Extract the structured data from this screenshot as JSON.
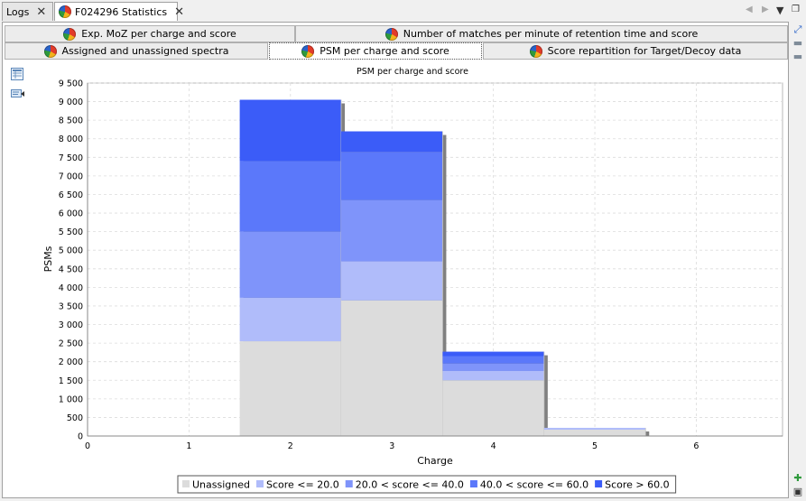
{
  "tabs": [
    {
      "label": "Logs",
      "active": false,
      "has_icon": false
    },
    {
      "label": "F024296 Statistics",
      "active": true,
      "has_icon": true
    }
  ],
  "close_glyph": "✕",
  "subtabs_row1": [
    "Exp. MoZ per charge and score",
    "Number of matches per minute of retention time and score"
  ],
  "subtabs_row2": [
    "Assigned and unassigned spectra",
    "PSM per charge and score",
    "Score repartition for Target/Decoy data"
  ],
  "active_subtab": "PSM per charge and score",
  "chart_data": {
    "type": "bar",
    "stacked": true,
    "title": "PSM per charge and score",
    "xlabel": "Charge",
    "ylabel": "PSMs",
    "xlim": [
      0,
      6.85
    ],
    "ylim": [
      0,
      9500
    ],
    "x_ticks": [
      "0",
      "1",
      "2",
      "3",
      "4",
      "5",
      "6"
    ],
    "y_ticks": [
      "0",
      "500",
      "1 000",
      "1 500",
      "2 000",
      "2 500",
      "3 000",
      "3 500",
      "4 000",
      "4 500",
      "5 000",
      "5 500",
      "6 000",
      "6 500",
      "7 000",
      "7 500",
      "8 000",
      "8 500",
      "9 000",
      "9 500"
    ],
    "categories": [
      2,
      3,
      4,
      5
    ],
    "series": [
      {
        "name": "Unassigned",
        "color": "#dcdcdc",
        "values": [
          2550,
          3650,
          1500,
          170
        ]
      },
      {
        "name": "Score <= 20.0",
        "color": "#b0bcfa",
        "values": [
          1170,
          1050,
          250,
          50
        ]
      },
      {
        "name": "20.0 < score <= 40.0",
        "color": "#7f94fa",
        "values": [
          1780,
          1650,
          200,
          0
        ]
      },
      {
        "name": "40.0 < score <= 60.0",
        "color": "#5b78fa",
        "values": [
          1900,
          1300,
          200,
          0
        ]
      },
      {
        "name": "Score > 60.0",
        "color": "#3b5cf8",
        "values": [
          1650,
          550,
          120,
          0
        ]
      }
    ],
    "grid": true,
    "legend_position": "bottom"
  }
}
